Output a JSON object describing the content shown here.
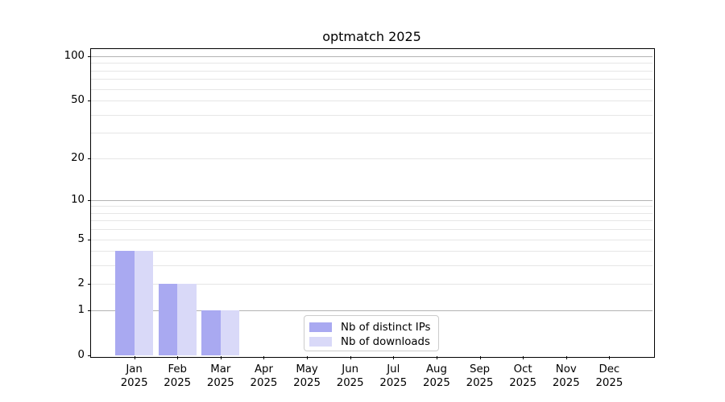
{
  "chart_data": {
    "type": "bar",
    "title": "optmatch 2025",
    "categories": [
      "Jan",
      "Feb",
      "Mar",
      "Apr",
      "May",
      "Jun",
      "Jul",
      "Aug",
      "Sep",
      "Oct",
      "Nov",
      "Dec"
    ],
    "year": "2025",
    "series": [
      {
        "name": "Nb of distinct IPs",
        "color": "#a9a9f1",
        "values": [
          4,
          2,
          1,
          0,
          0,
          0,
          0,
          0,
          0,
          0,
          0,
          0
        ]
      },
      {
        "name": "Nb of downloads",
        "color": "#d9d9f8",
        "values": [
          4,
          2,
          1,
          0,
          0,
          0,
          0,
          0,
          0,
          0,
          0,
          0
        ]
      }
    ],
    "xlabel": "",
    "ylabel": "",
    "yscale": "log10(1+y)",
    "ylim": [
      0,
      112
    ],
    "yticks": [
      0,
      1,
      2,
      5,
      10,
      20,
      50,
      100
    ],
    "yticks_minor": [
      3,
      4,
      6,
      7,
      8,
      9,
      30,
      40,
      60,
      70,
      80,
      90
    ],
    "grid": true,
    "legend_position": "lower center",
    "colors": {
      "grid_major": "#b3b3b3",
      "grid_minor": "#e6e6e6",
      "axis": "#000000",
      "background": "#ffffff"
    }
  }
}
